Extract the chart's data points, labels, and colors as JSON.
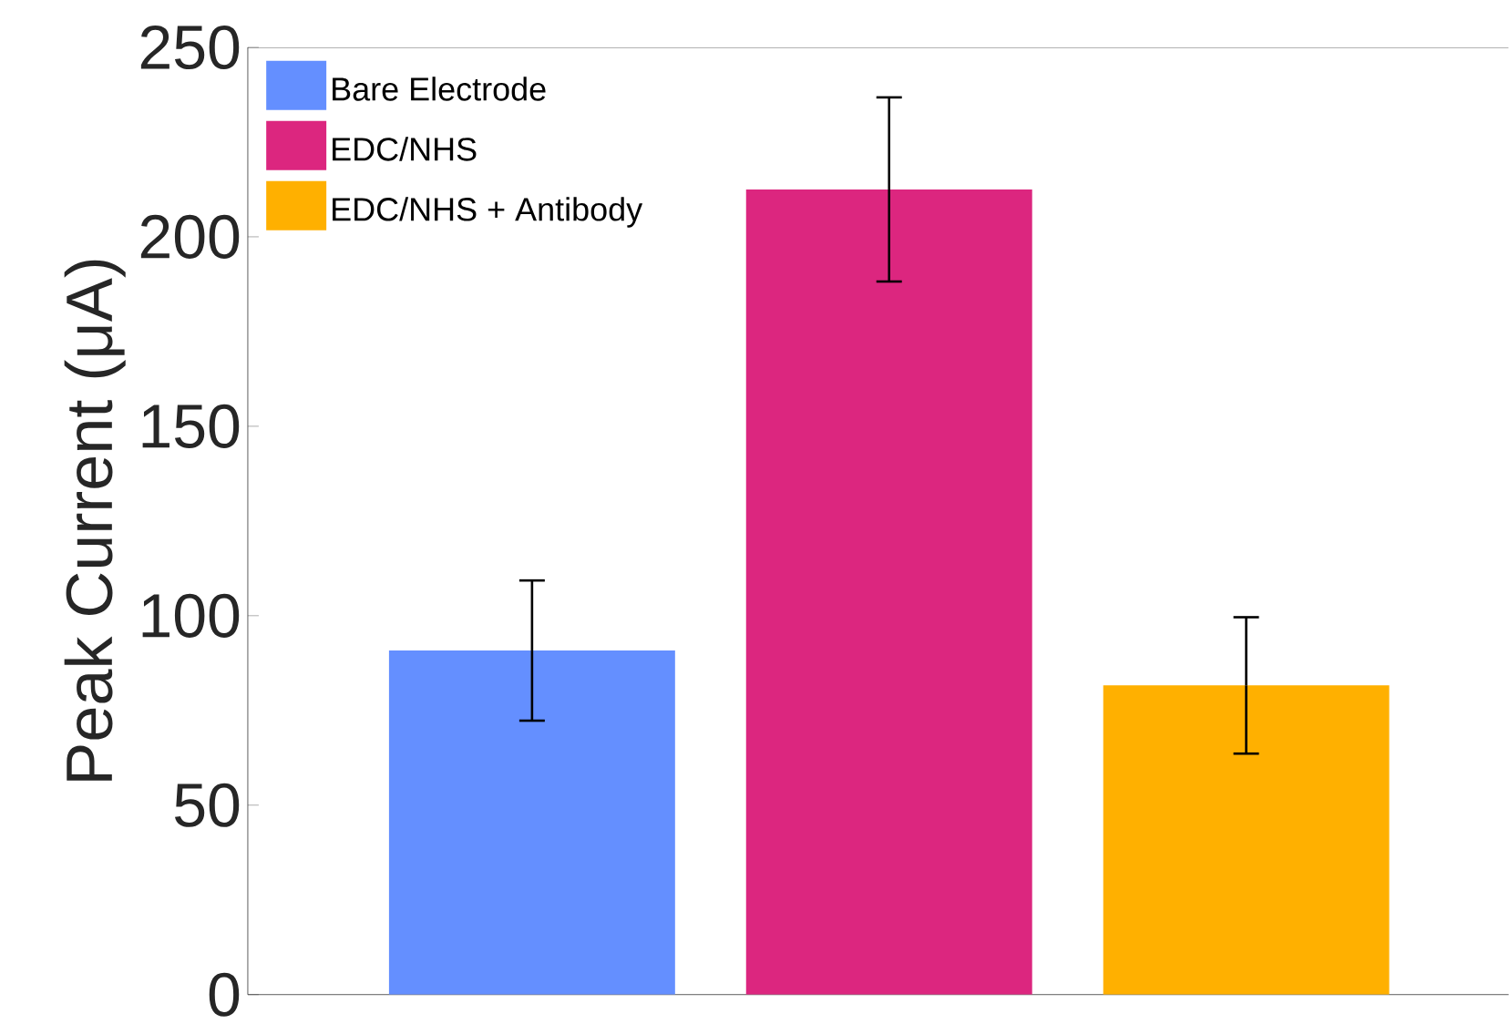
{
  "chart_data": {
    "type": "bar",
    "ylabel": "Peak Current (μA)",
    "categories": [
      null,
      null,
      null
    ],
    "series": [
      {
        "name": "Bare Electrode",
        "color": "#648fff",
        "values": [
          90.8,
          null,
          null
        ],
        "errors": [
          18.5,
          null,
          null
        ]
      },
      {
        "name": "EDC/NHS",
        "color": "#dc267f",
        "values": [
          null,
          212.5,
          null
        ],
        "errors": [
          null,
          24.3,
          null
        ]
      },
      {
        "name": "EDC/NHS + Antibody",
        "color": "#ffb000",
        "values": [
          null,
          null,
          81.6
        ],
        "errors": [
          null,
          null,
          18
        ]
      }
    ],
    "ylim": [
      0,
      250
    ],
    "yticks": [
      0,
      50,
      100,
      150,
      200,
      250
    ],
    "grid": false,
    "legend": "top left"
  }
}
